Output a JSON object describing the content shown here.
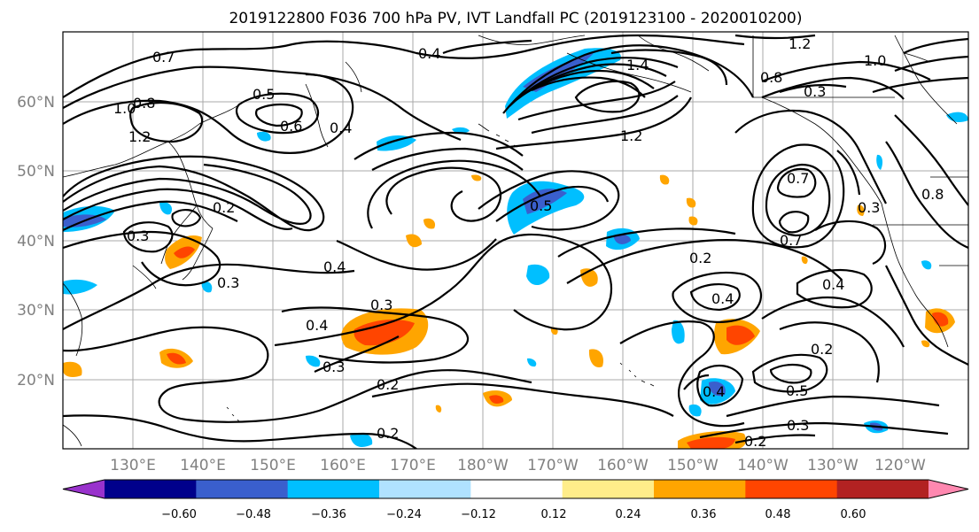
{
  "title": "2019122800 F036 700 hPa PV, IVT Landfall PC (2019123100 - 2020010200)",
  "map": {
    "lon_labels": [
      "130°E",
      "140°E",
      "150°E",
      "160°E",
      "170°E",
      "180°W",
      "170°W",
      "160°W",
      "150°W",
      "140°W",
      "130°W",
      "120°W"
    ],
    "lat_labels": [
      "60°N",
      "50°N",
      "40°N",
      "30°N",
      "20°N"
    ],
    "contour_labels": [
      "0.7",
      "1.0",
      "0.8",
      "1.2",
      "0.5",
      "0.6",
      "0.4",
      "0.3",
      "0.4",
      "0.4",
      "0.3",
      "0.2",
      "0.2",
      "0.3",
      "1.4",
      "1.2",
      "0.5",
      "0.8",
      "0.3",
      "1.2",
      "1.0",
      "0.7",
      "0.7",
      "0.3",
      "0.2",
      "0.4",
      "0.4",
      "0.2",
      "0.5",
      "0.3",
      "0.2",
      "0.4",
      "0.3",
      "0.2",
      "0.8",
      "0.4"
    ],
    "contour_color": "#000000"
  },
  "colorbar": {
    "colors": [
      "#9932cc",
      "#00008b",
      "#3a5fcd",
      "#00bfff",
      "#b0e2ff",
      "#ffffff",
      "#ffed8a",
      "#ffa500",
      "#ff4500",
      "#b22222",
      "#ff88b0"
    ],
    "tick_labels": [
      "−0.60",
      "−0.48",
      "−0.36",
      "−0.24",
      "−0.12",
      "0.12",
      "0.24",
      "0.36",
      "0.48",
      "0.60"
    ]
  }
}
